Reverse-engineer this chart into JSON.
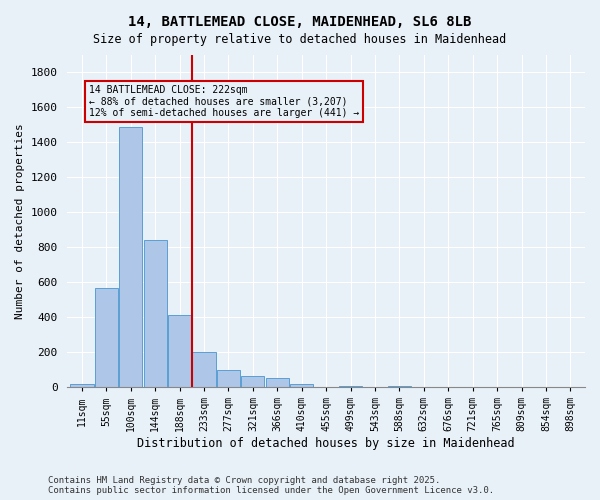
{
  "title_line1": "14, BATTLEMEAD CLOSE, MAIDENHEAD, SL6 8LB",
  "title_line2": "Size of property relative to detached houses in Maidenhead",
  "xlabel": "Distribution of detached houses by size in Maidenhead",
  "ylabel": "Number of detached properties",
  "footer_line1": "Contains HM Land Registry data © Crown copyright and database right 2025.",
  "footer_line2": "Contains public sector information licensed under the Open Government Licence v3.0.",
  "annotation_line1": "14 BATTLEMEAD CLOSE: 222sqm",
  "annotation_line2": "← 88% of detached houses are smaller (3,207)",
  "annotation_line3": "12% of semi-detached houses are larger (441) →",
  "bar_color": "#aec6e8",
  "bar_edge_color": "#5a9fd4",
  "vline_color": "#cc0000",
  "annotation_box_color": "#cc0000",
  "background_color": "#e8f0f8",
  "bins": [
    "11sqm",
    "55sqm",
    "100sqm",
    "144sqm",
    "188sqm",
    "233sqm",
    "277sqm",
    "321sqm",
    "366sqm",
    "410sqm",
    "455sqm",
    "499sqm",
    "543sqm",
    "588sqm",
    "632sqm",
    "676sqm",
    "721sqm",
    "765sqm",
    "809sqm",
    "854sqm",
    "898sqm"
  ],
  "values": [
    20,
    570,
    1490,
    840,
    410,
    200,
    100,
    65,
    55,
    20,
    0,
    5,
    0,
    5,
    0,
    0,
    0,
    0,
    0,
    0,
    0
  ],
  "ylim": [
    0,
    1900
  ],
  "yticks": [
    0,
    200,
    400,
    600,
    800,
    1000,
    1200,
    1400,
    1600,
    1800
  ]
}
